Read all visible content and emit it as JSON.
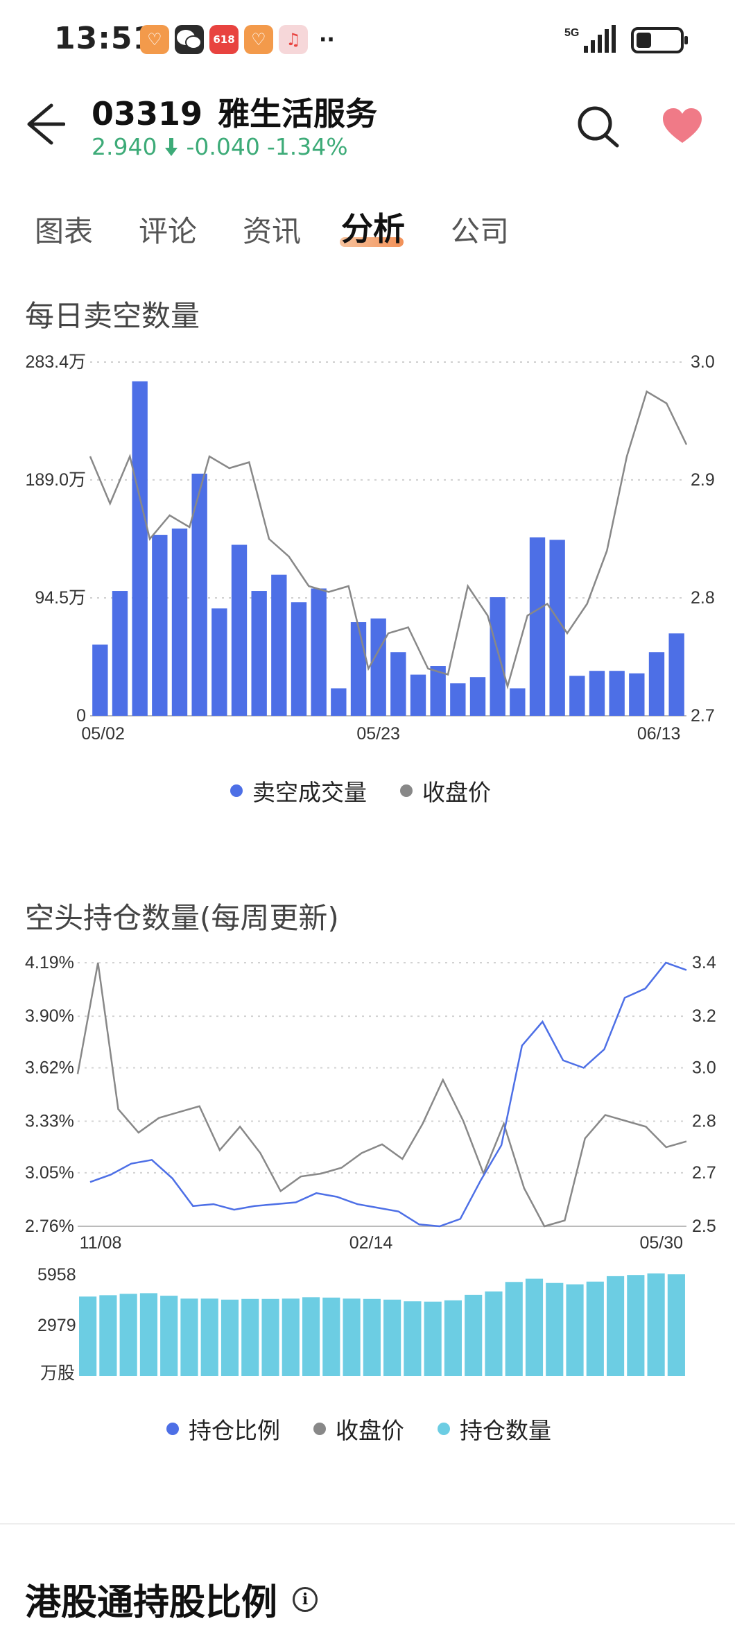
{
  "status_bar": {
    "time": "13:51",
    "network": "5G",
    "battery_level": 0.35,
    "apps": [
      {
        "icon": "heart-app-icon",
        "color": "#f39a4b",
        "glyph": "♡"
      },
      {
        "icon": "wechat-icon",
        "color": "#2b2b2b",
        "glyph": ""
      },
      {
        "icon": "shopping-618-icon",
        "color": "#e8433f",
        "glyph": "618"
      },
      {
        "icon": "heart-app-icon",
        "color": "#f39a4b",
        "glyph": "♡"
      },
      {
        "icon": "music-icon",
        "color": "#f6d7d9",
        "glyph": "♫"
      }
    ],
    "more": "··"
  },
  "header": {
    "code": "03319",
    "name": "雅生活服务",
    "price": "2.940",
    "change": "-0.040",
    "change_pct": "-1.34%",
    "down_color": "#3dab78",
    "fav_color": "#f07a87"
  },
  "tabs": [
    {
      "label": "图表",
      "active": false
    },
    {
      "label": "评论",
      "active": false
    },
    {
      "label": "资讯",
      "active": false
    },
    {
      "label": "分析",
      "active": true
    },
    {
      "label": "公司",
      "active": false
    }
  ],
  "short_selling": {
    "title": "每日卖空数量",
    "legend": [
      {
        "label": "卖空成交量",
        "color": "#4d6fe6"
      },
      {
        "label": "收盘价",
        "color": "#888888"
      }
    ]
  },
  "short_position": {
    "title": "空头持仓数量(每周更新)",
    "legend": [
      {
        "label": "持仓比例",
        "color": "#4d6fe6"
      },
      {
        "label": "收盘价",
        "color": "#888888"
      },
      {
        "label": "持仓数量",
        "color": "#6ccde3"
      }
    ]
  },
  "hk_connect": {
    "title": "港股通持股比例",
    "info_glyph": "i"
  },
  "chart_data": [
    {
      "type": "bar",
      "x_labels": [
        "05/02",
        "05/23",
        "06/13"
      ],
      "left_axis_ticks": [
        "283.4万",
        "189.0万",
        "94.5万",
        "0"
      ],
      "right_axis_ticks": [
        "3.0",
        "2.9",
        "2.8",
        "2.7"
      ],
      "ylim": [
        0,
        283.4
      ],
      "y2lim": [
        2.7,
        3.0
      ],
      "series": [
        {
          "name": "卖空成交量",
          "kind": "bar",
          "color": "#4d6fe6",
          "values": [
            57,
            100,
            268,
            145,
            150,
            194,
            86,
            137,
            100,
            113,
            91,
            102,
            22,
            75,
            78,
            51,
            33,
            40,
            26,
            31,
            95,
            22,
            143,
            141,
            32,
            36,
            36,
            34,
            51,
            66
          ]
        },
        {
          "name": "收盘价",
          "kind": "line",
          "color": "#888888",
          "values": [
            2.92,
            2.88,
            2.92,
            2.85,
            2.87,
            2.86,
            2.92,
            2.91,
            2.915,
            2.85,
            2.835,
            2.81,
            2.805,
            2.81,
            2.74,
            2.77,
            2.775,
            2.74,
            2.735,
            2.81,
            2.785,
            2.725,
            2.785,
            2.795,
            2.77,
            2.795,
            2.84,
            2.92,
            2.975,
            2.965,
            2.93
          ]
        }
      ]
    },
    {
      "type": "line",
      "x_labels": [
        "11/08",
        "02/14",
        "05/30"
      ],
      "left_axis_ticks": [
        "4.19%",
        "3.90%",
        "3.62%",
        "3.33%",
        "3.05%",
        "2.76%"
      ],
      "right_axis_ticks": [
        "3.4",
        "3.2",
        "3.0",
        "2.8",
        "2.7",
        "2.5"
      ],
      "ylim": [
        2.76,
        4.19
      ],
      "y2lim": [
        2.5,
        3.4
      ],
      "series": [
        {
          "name": "持仓比例",
          "kind": "line",
          "color": "#4d6fe6",
          "values": [
            3.0,
            3.04,
            3.1,
            3.12,
            3.02,
            2.87,
            2.88,
            2.85,
            2.87,
            2.88,
            2.89,
            2.94,
            2.92,
            2.88,
            2.86,
            2.84,
            2.77,
            2.76,
            2.8,
            3.01,
            3.2,
            3.74,
            3.87,
            3.66,
            3.62,
            3.72,
            4.0,
            4.05,
            4.19,
            4.15
          ]
        },
        {
          "name": "收盘价",
          "kind": "line",
          "color": "#888888",
          "values": [
            3.02,
            3.4,
            2.9,
            2.82,
            2.87,
            2.89,
            2.91,
            2.76,
            2.84,
            2.75,
            2.62,
            2.67,
            2.68,
            2.7,
            2.75,
            2.78,
            2.73,
            2.85,
            3.0,
            2.86,
            2.68,
            2.85,
            2.63,
            2.5,
            2.52,
            2.8,
            2.88,
            2.86,
            2.84,
            2.77,
            2.79
          ]
        }
      ]
    },
    {
      "type": "bar",
      "axis_ticks": [
        "5958",
        "2979"
      ],
      "unit": "万股",
      "ylim": [
        0,
        5958
      ],
      "series": [
        {
          "name": "持仓数量",
          "kind": "bar",
          "color": "#6ccde3",
          "values": [
            4680,
            4760,
            4840,
            4880,
            4730,
            4560,
            4560,
            4500,
            4540,
            4540,
            4560,
            4640,
            4620,
            4560,
            4540,
            4500,
            4400,
            4380,
            4460,
            4780,
            4980,
            5540,
            5730,
            5480,
            5400,
            5560,
            5880,
            5950,
            6040,
            5990
          ]
        }
      ]
    }
  ]
}
